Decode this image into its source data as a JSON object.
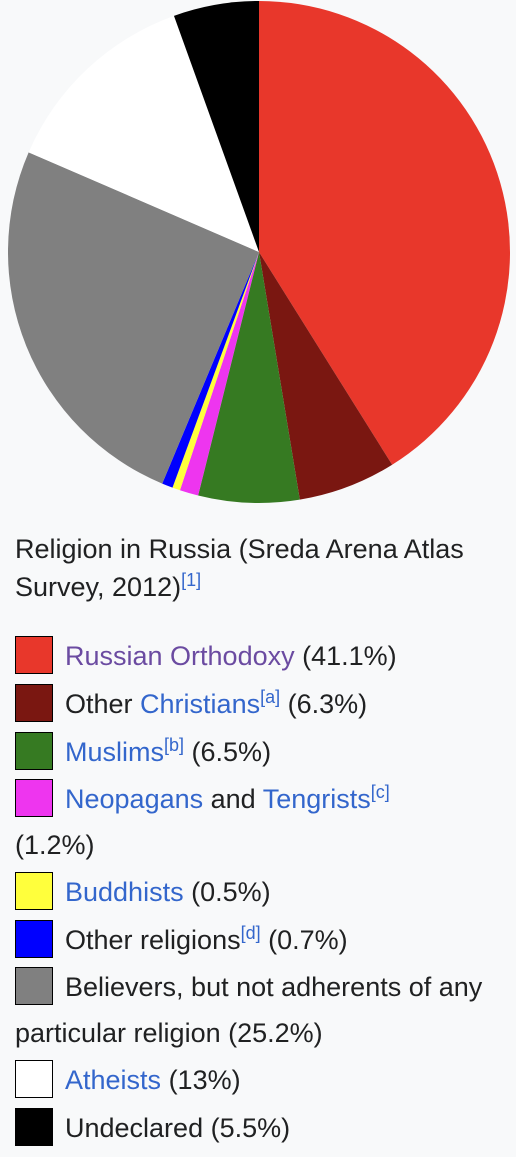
{
  "caption": {
    "text": "Religion in Russia (Sreda Arena Atlas Survey, 2012)",
    "ref": "[1]"
  },
  "chart_data": {
    "type": "pie",
    "slices": [
      {
        "label": "Russian Orthodoxy",
        "value": 41.1,
        "color": "#e8372b"
      },
      {
        "label": "Other Christians",
        "value": 6.3,
        "color": "#7a1711"
      },
      {
        "label": "Muslims",
        "value": 6.5,
        "color": "#367a22"
      },
      {
        "label": "Neopagans and Tengrists",
        "value": 1.2,
        "color": "#ee35ef"
      },
      {
        "label": "Buddhists",
        "value": 0.5,
        "color": "#ffff3c"
      },
      {
        "label": "Other religions",
        "value": 0.7,
        "color": "#0000ff"
      },
      {
        "label": "Believers, but not adherents of any particular religion",
        "value": 25.2,
        "color": "#808080"
      },
      {
        "label": "Atheists",
        "value": 13,
        "color": "#ffffff"
      },
      {
        "label": "Undeclared",
        "value": 5.5,
        "color": "#000000"
      }
    ]
  },
  "legend": {
    "orthodoxy": {
      "name": "Russian Orthodoxy",
      "value": "(41.1%)",
      "color": "#e8372b"
    },
    "other_christians": {
      "prefix": "Other",
      "link": "Christians",
      "note": "[a]",
      "value": "(6.3%)",
      "color": "#7a1711"
    },
    "muslims": {
      "link": "Muslims",
      "note": "[b]",
      "value": "(6.5%)",
      "color": "#367a22"
    },
    "neopagans": {
      "link1": "Neopagans",
      "and": "and",
      "link2": "Tengrists",
      "note": "[c]",
      "value": "(1.2%)",
      "color": "#ee35ef"
    },
    "buddhists": {
      "link": "Buddhists",
      "value": "(0.5%)",
      "color": "#ffff3c"
    },
    "other_religions": {
      "text": "Other religions",
      "note": "[d]",
      "value": "(0.7%)",
      "color": "#0000ff"
    },
    "believers": {
      "text": "Believers, but not adherents of any particular religion",
      "value": "(25.2%)",
      "color": "#808080"
    },
    "atheists": {
      "link": "Atheists",
      "value": "(13%)",
      "color": "#ffffff"
    },
    "undeclared": {
      "text": "Undeclared",
      "value": "(5.5%)",
      "color": "#000000"
    }
  }
}
